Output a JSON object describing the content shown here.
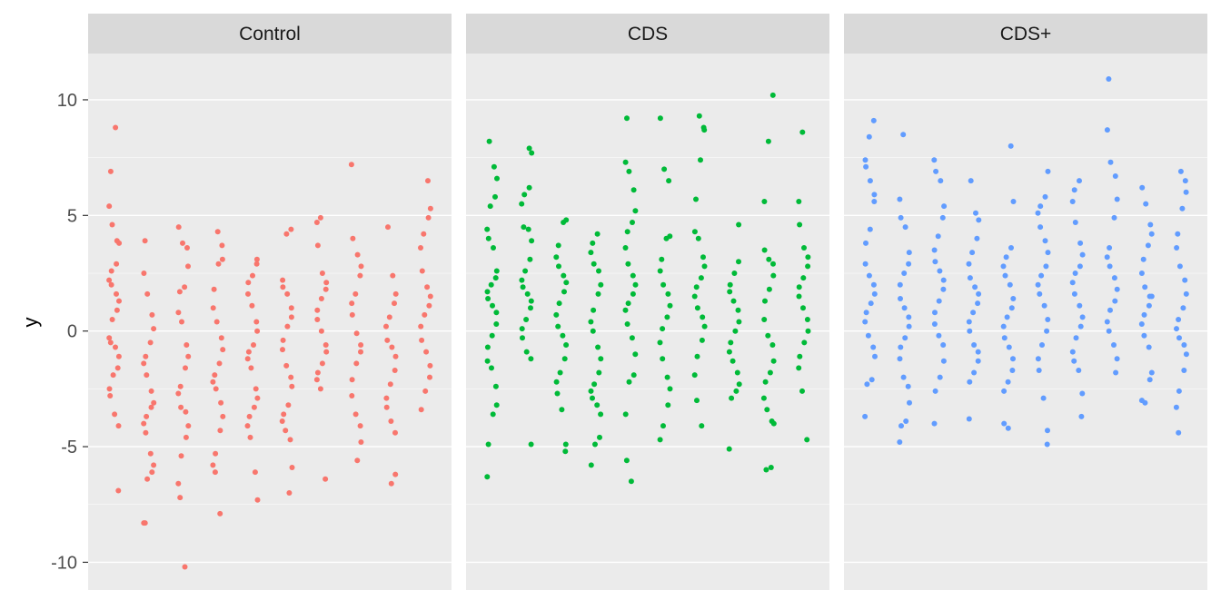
{
  "chart_data": {
    "type": "scatter",
    "facet_by": "group",
    "ylabel": "y",
    "xlabel": "",
    "ylim": [
      -11.2,
      12.0
    ],
    "y_ticks": [
      -10,
      -5,
      0,
      5,
      10
    ],
    "y_tick_labels": [
      "-10",
      "-5",
      "0",
      "5",
      "10"
    ],
    "grid": true,
    "facets": [
      {
        "name": "Control",
        "color": "#F8766D",
        "columns": [
          [
            8.8,
            6.9,
            5.4,
            4.6,
            3.9,
            3.8,
            2.9,
            2.6,
            2.2,
            2.0,
            1.6,
            1.3,
            0.9,
            0.5,
            -0.3,
            -0.5,
            -0.7,
            -1.1,
            -1.6,
            -1.9,
            -2.5,
            -2.8,
            -3.6,
            -4.1,
            -6.9
          ],
          [
            3.9,
            2.5,
            1.6,
            0.7,
            0.1,
            -0.5,
            -1.1,
            -1.4,
            -1.9,
            -2.6,
            -3.1,
            -3.3,
            -3.7,
            -4.0,
            -4.4,
            -5.3,
            -5.8,
            -6.1,
            -6.4,
            -8.3,
            -8.3
          ],
          [
            4.5,
            3.8,
            3.6,
            2.8,
            1.9,
            1.7,
            0.8,
            0.4,
            -0.6,
            -1.1,
            -1.6,
            -2.4,
            -2.7,
            -3.3,
            -3.5,
            -4.1,
            -4.6,
            -5.4,
            -6.6,
            -7.2,
            -10.2
          ],
          [
            4.3,
            3.7,
            3.1,
            2.9,
            1.8,
            1.0,
            0.4,
            -0.3,
            -0.8,
            -1.4,
            -1.9,
            -2.2,
            -2.5,
            -3.1,
            -3.7,
            -4.3,
            -5.3,
            -5.8,
            -6.1,
            -7.9
          ],
          [
            3.1,
            2.9,
            2.4,
            2.1,
            1.6,
            1.1,
            0.4,
            0.0,
            -0.6,
            -0.9,
            -1.2,
            -1.6,
            -2.5,
            -2.9,
            -3.3,
            -3.7,
            -4.1,
            -4.6,
            -6.1,
            -7.3
          ],
          [
            4.4,
            4.2,
            2.2,
            1.9,
            1.6,
            1.0,
            0.6,
            0.2,
            -0.4,
            -0.8,
            -1.5,
            -2.0,
            -2.4,
            -3.2,
            -3.6,
            -3.9,
            -4.3,
            -4.7,
            -5.9,
            -7.0
          ],
          [
            4.9,
            4.7,
            3.7,
            2.5,
            2.1,
            1.8,
            1.4,
            0.9,
            0.5,
            0.0,
            -0.6,
            -0.9,
            -1.4,
            -1.8,
            -2.1,
            -2.5,
            -6.4
          ],
          [
            7.2,
            4.0,
            3.3,
            2.8,
            2.4,
            1.6,
            1.2,
            0.7,
            -0.1,
            -0.6,
            -0.9,
            -1.4,
            -2.1,
            -2.8,
            -3.6,
            -4.1,
            -4.8,
            -5.6
          ],
          [
            4.5,
            2.4,
            1.6,
            1.2,
            0.6,
            0.2,
            -0.4,
            -0.7,
            -1.1,
            -1.7,
            -2.3,
            -2.9,
            -3.3,
            -3.9,
            -4.4,
            -6.2,
            -6.6
          ],
          [
            6.5,
            5.3,
            4.9,
            4.2,
            3.6,
            2.6,
            1.9,
            1.5,
            1.1,
            0.7,
            0.2,
            -0.4,
            -0.9,
            -1.5,
            -2.0,
            -2.6,
            -3.4
          ]
        ]
      },
      {
        "name": "CDS",
        "color": "#00BA38",
        "columns": [
          [
            8.2,
            7.1,
            6.6,
            5.8,
            5.4,
            4.4,
            4.0,
            3.6,
            2.6,
            2.3,
            2.0,
            1.7,
            1.4,
            1.1,
            0.8,
            0.3,
            -0.2,
            -0.7,
            -1.3,
            -1.6,
            -2.4,
            -3.2,
            -3.6,
            -4.9,
            -6.3
          ],
          [
            7.9,
            7.7,
            6.2,
            5.9,
            5.5,
            4.5,
            4.4,
            3.9,
            3.1,
            2.6,
            2.2,
            1.9,
            1.6,
            1.3,
            1.0,
            0.5,
            0.1,
            -0.3,
            -0.9,
            -1.2,
            -4.9
          ],
          [
            4.8,
            4.7,
            3.7,
            3.2,
            2.8,
            2.4,
            2.1,
            1.7,
            1.2,
            0.7,
            0.2,
            -0.2,
            -0.6,
            -1.2,
            -1.8,
            -2.2,
            -2.7,
            -3.4,
            -4.9,
            -5.2
          ],
          [
            4.2,
            3.8,
            3.4,
            2.9,
            2.6,
            2.0,
            1.6,
            0.9,
            0.4,
            0.0,
            -0.7,
            -1.2,
            -1.8,
            -2.3,
            -2.6,
            -2.9,
            -3.2,
            -3.6,
            -4.6,
            -4.9,
            -5.8
          ],
          [
            9.2,
            7.3,
            6.9,
            6.1,
            5.2,
            4.7,
            4.3,
            3.6,
            2.9,
            2.4,
            2.0,
            1.6,
            1.2,
            0.9,
            0.3,
            -0.3,
            -1.0,
            -1.9,
            -2.2,
            -3.6,
            -5.6,
            -6.5
          ],
          [
            9.2,
            7.0,
            6.5,
            4.1,
            4.0,
            3.1,
            2.6,
            2.0,
            1.6,
            1.1,
            0.6,
            0.1,
            -0.5,
            -1.2,
            -2.0,
            -2.5,
            -3.2,
            -4.1,
            -4.7
          ],
          [
            9.3,
            8.8,
            8.7,
            7.4,
            5.7,
            4.3,
            4.0,
            3.2,
            2.8,
            2.3,
            1.9,
            1.5,
            1.0,
            0.6,
            0.2,
            -0.4,
            -1.1,
            -1.9,
            -3.0,
            -4.1
          ],
          [
            4.6,
            3.0,
            2.5,
            2.0,
            1.7,
            1.3,
            0.9,
            0.4,
            0.0,
            -0.5,
            -0.9,
            -1.3,
            -1.8,
            -2.3,
            -2.6,
            -2.9,
            -5.1
          ],
          [
            10.2,
            8.2,
            5.6,
            3.5,
            3.1,
            2.9,
            2.4,
            1.8,
            1.3,
            0.5,
            -0.2,
            -0.6,
            -1.3,
            -1.8,
            -2.2,
            -2.9,
            -3.4,
            -3.9,
            -4.0,
            -5.9,
            -6.0
          ],
          [
            8.6,
            5.6,
            4.6,
            3.6,
            3.2,
            2.8,
            2.3,
            1.9,
            1.5,
            1.0,
            0.5,
            0.0,
            -0.5,
            -1.1,
            -1.6,
            -2.6,
            -4.7
          ]
        ]
      },
      {
        "name": "CDS+",
        "color": "#619CFF",
        "columns": [
          [
            9.1,
            8.4,
            7.4,
            7.1,
            6.5,
            5.9,
            5.6,
            4.4,
            3.8,
            2.9,
            2.4,
            2.0,
            1.6,
            1.2,
            0.8,
            0.4,
            -0.2,
            -0.7,
            -1.1,
            -2.1,
            -2.3,
            -3.7
          ],
          [
            8.5,
            5.7,
            4.9,
            4.5,
            3.4,
            2.9,
            2.5,
            2.0,
            1.4,
            1.0,
            0.6,
            0.2,
            -0.3,
            -0.7,
            -1.2,
            -2.0,
            -2.4,
            -3.1,
            -3.9,
            -4.1,
            -4.8
          ],
          [
            7.4,
            6.9,
            6.5,
            5.4,
            4.9,
            4.1,
            3.5,
            3.0,
            2.6,
            2.2,
            1.8,
            1.3,
            0.8,
            0.3,
            -0.2,
            -0.6,
            -1.3,
            -2.0,
            -2.6,
            -4.0
          ],
          [
            6.5,
            5.1,
            4.8,
            4.0,
            3.4,
            2.9,
            2.3,
            1.9,
            1.6,
            1.2,
            0.8,
            0.4,
            0.0,
            -0.6,
            -0.9,
            -1.3,
            -1.8,
            -2.2,
            -3.8
          ],
          [
            8.0,
            5.6,
            3.6,
            3.2,
            2.8,
            2.4,
            2.0,
            1.4,
            1.0,
            0.6,
            0.2,
            -0.3,
            -0.7,
            -1.2,
            -1.7,
            -2.2,
            -2.6,
            -4.0,
            -4.2
          ],
          [
            6.9,
            5.8,
            5.4,
            5.1,
            4.5,
            3.9,
            3.4,
            2.8,
            2.4,
            2.0,
            1.6,
            1.1,
            0.5,
            0.0,
            -0.6,
            -1.2,
            -1.7,
            -2.9,
            -4.3,
            -4.9
          ],
          [
            6.5,
            6.1,
            5.6,
            4.7,
            3.8,
            3.3,
            2.8,
            2.5,
            2.1,
            1.6,
            1.1,
            0.6,
            0.2,
            -0.3,
            -0.9,
            -1.3,
            -1.7,
            -2.7,
            -3.7
          ],
          [
            10.9,
            8.7,
            7.3,
            6.7,
            5.7,
            4.9,
            3.6,
            3.2,
            2.8,
            2.3,
            1.8,
            1.3,
            0.9,
            0.4,
            0.0,
            -0.6,
            -1.2,
            -1.8
          ],
          [
            6.2,
            5.5,
            4.6,
            4.2,
            3.7,
            3.1,
            2.5,
            1.9,
            1.5,
            1.5,
            1.1,
            0.7,
            0.3,
            -0.2,
            -0.7,
            -1.8,
            -2.1,
            -3.1,
            -3.0
          ],
          [
            6.9,
            6.5,
            6.0,
            5.3,
            4.2,
            3.6,
            2.8,
            2.2,
            1.6,
            1.0,
            0.5,
            0.1,
            -0.3,
            -0.6,
            -1.0,
            -1.7,
            -2.6,
            -3.3,
            -4.4
          ]
        ]
      }
    ]
  }
}
